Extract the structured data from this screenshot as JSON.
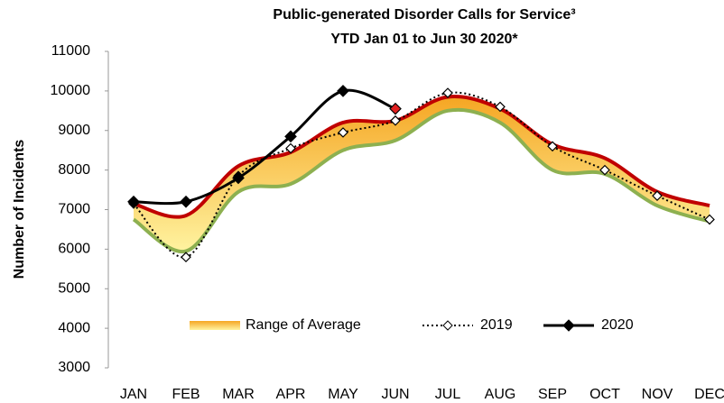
{
  "chart_data": {
    "type": "line",
    "title": "Public-generated Disorder Calls for Service³",
    "subtitle": "YTD Jan 01 to Jun 30 2020*",
    "y_label": "Number of Incidents",
    "categories": [
      "JAN",
      "FEB",
      "MAR",
      "APR",
      "MAY",
      "JUN",
      "JUL",
      "AUG",
      "SEP",
      "OCT",
      "NOV",
      "DEC"
    ],
    "range": {
      "name": "Range of Average",
      "upper_color": "#c00000",
      "lower_color": "#8db050",
      "fill_top": "#f5a623",
      "fill_bottom": "#fff3a0",
      "upper": [
        7150,
        6850,
        8100,
        8450,
        9200,
        9250,
        9850,
        9550,
        8650,
        8300,
        7450,
        7100
      ],
      "lower": [
        6750,
        5950,
        7450,
        7650,
        8500,
        8750,
        9500,
        9200,
        8000,
        7900,
        7100,
        6700
      ]
    },
    "series": [
      {
        "name": "2019",
        "color": "#000000",
        "dashed": true,
        "marker": "open-diamond",
        "values": [
          7150,
          5800,
          7850,
          8550,
          8950,
          9250,
          9950,
          9600,
          8600,
          8000,
          7350,
          6750
        ]
      },
      {
        "name": "2020",
        "color": "#000000",
        "dashed": false,
        "marker": "diamond",
        "last_marker_color": "#e02020",
        "values": [
          7200,
          7200,
          7800,
          8850,
          10000,
          9550,
          null,
          null,
          null,
          null,
          null,
          null
        ]
      }
    ],
    "ylim": [
      3000,
      11000
    ],
    "yticks": [
      3000,
      4000,
      5000,
      6000,
      7000,
      8000,
      9000,
      10000,
      11000
    ]
  }
}
